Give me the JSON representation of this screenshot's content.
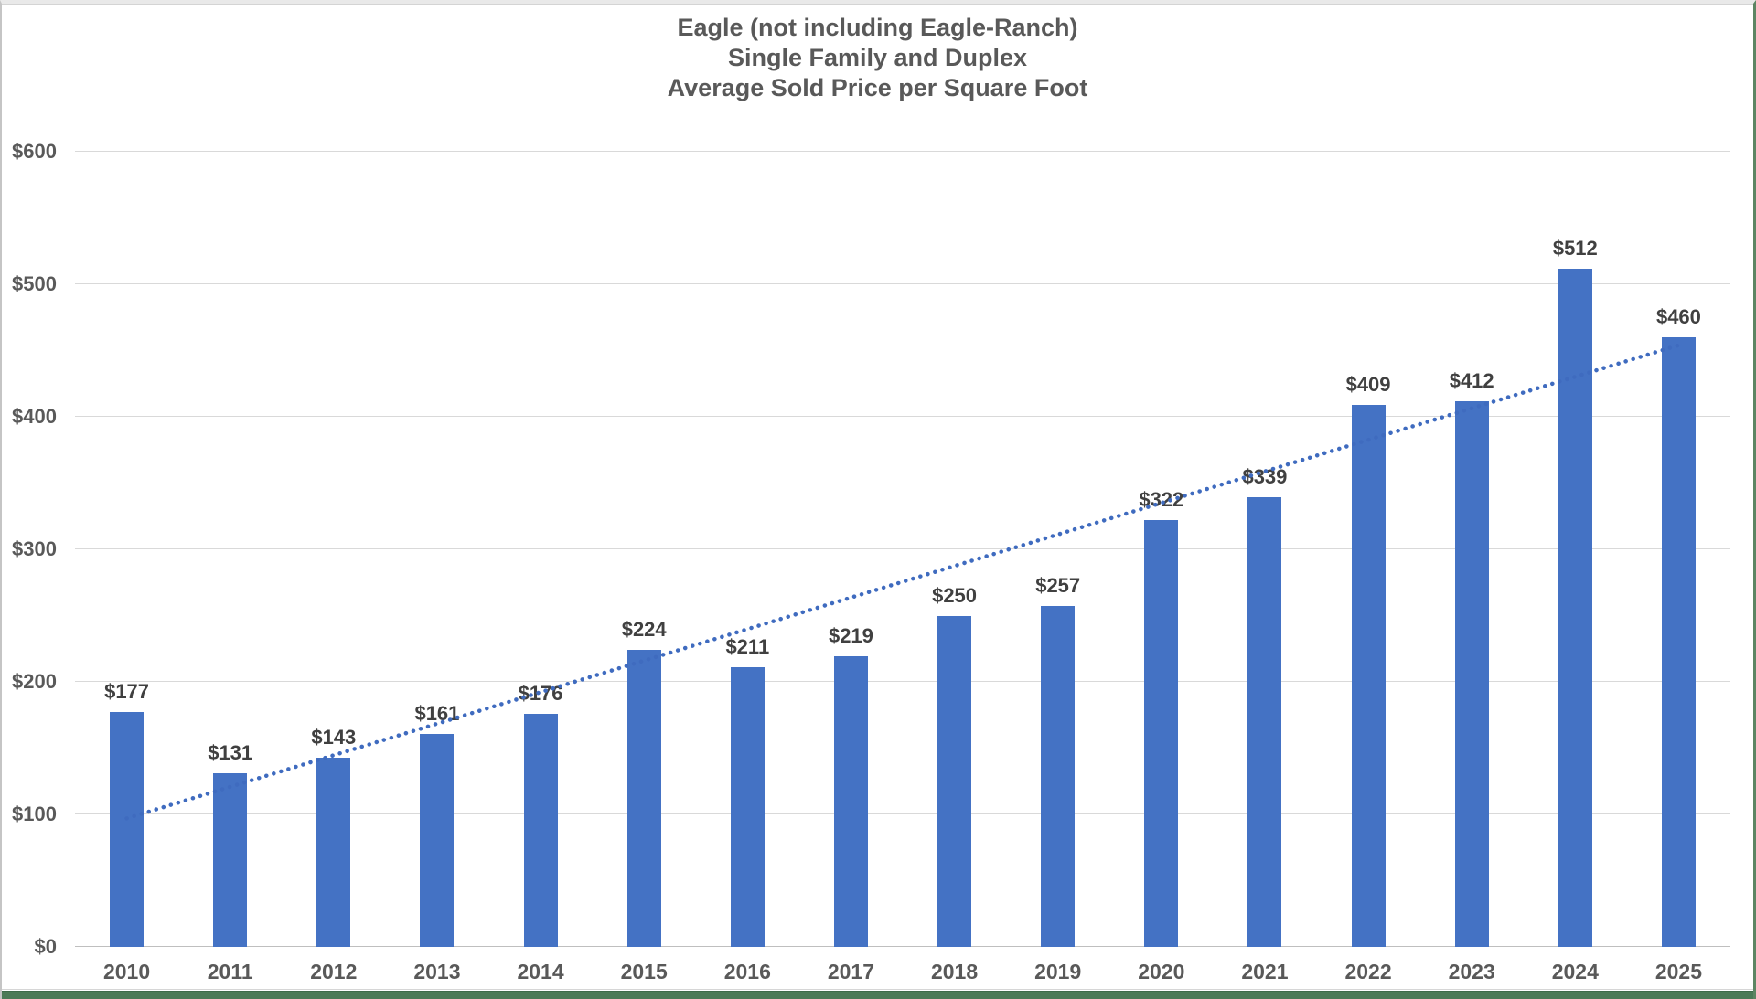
{
  "page": {
    "background": "#ffffff",
    "frame_top_color": "#e9e9e9",
    "frame_left_color": "#c5c5c5",
    "frame_right_color": "#5d8563",
    "bottom_strip_color": "#4c7a57"
  },
  "chart_data": {
    "type": "bar",
    "title": "Eagle (not including Eagle-Ranch) Single Family and Duplex Average Sold Price per Square Foot",
    "title_lines": [
      "Eagle (not including Eagle-Ranch)",
      "Single Family and Duplex",
      "Average Sold Price per Square Foot"
    ],
    "categories": [
      "2010",
      "2011",
      "2012",
      "2013",
      "2014",
      "2015",
      "2016",
      "2017",
      "2018",
      "2019",
      "2020",
      "2021",
      "2022",
      "2023",
      "2024",
      "2025"
    ],
    "values": [
      177,
      131,
      143,
      161,
      176,
      224,
      211,
      219,
      250,
      257,
      322,
      339,
      409,
      412,
      512,
      460
    ],
    "bar_labels": [
      "$177",
      "$131",
      "$143",
      "$161",
      "$176",
      "$224",
      "$211",
      "$219",
      "$250",
      "$257",
      "$322",
      "$339",
      "$409",
      "$412",
      "$512",
      "$460"
    ],
    "y_ticks": [
      {
        "value": 0,
        "label": "$0"
      },
      {
        "value": 100,
        "label": "$100"
      },
      {
        "value": 200,
        "label": "$200"
      },
      {
        "value": 300,
        "label": "$300"
      },
      {
        "value": 400,
        "label": "$400"
      },
      {
        "value": 500,
        "label": "$500"
      },
      {
        "value": 600,
        "label": "$600"
      }
    ],
    "ylim": [
      0,
      600
    ],
    "xlabel": "",
    "ylabel": "",
    "grid": true,
    "legend": false,
    "bar_color": "#4472C4",
    "gridline_color": "#D9D9D9",
    "axis_line_color": "#BFBFBF",
    "title_color": "#595959",
    "axis_text_color": "#595959",
    "data_label_color": "#404040",
    "trendline": {
      "type": "linear",
      "style": "dotted",
      "color": "#3F6BBF",
      "start_value": 97,
      "end_value": 454
    }
  }
}
